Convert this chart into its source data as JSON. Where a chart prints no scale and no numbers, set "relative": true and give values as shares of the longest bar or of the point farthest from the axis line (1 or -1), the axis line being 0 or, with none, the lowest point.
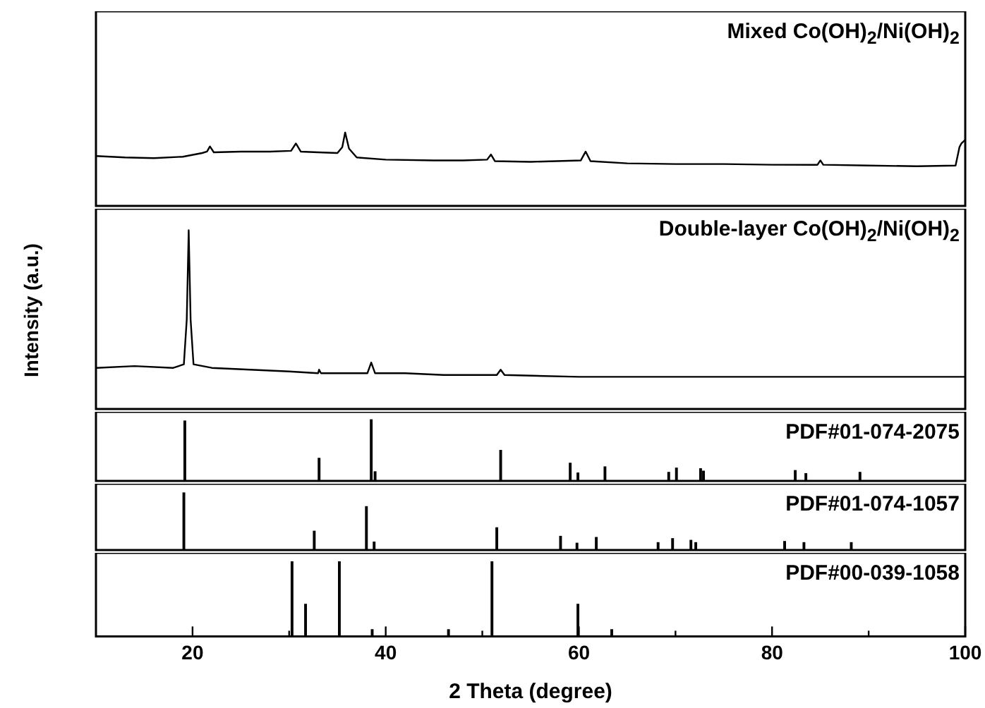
{
  "chart_data": [
    {
      "type": "line",
      "relative": true,
      "tick_labels": false,
      "xlim": [
        10,
        100
      ],
      "color": "#000000",
      "annotations": [
        "Mixed Co(OH)$_{2}$/Ni(OH)$_{2}$"
      ],
      "x": [
        10,
        13,
        16,
        19,
        21,
        21.5,
        21.8,
        22.2,
        25,
        28,
        30.2,
        30.7,
        31.2,
        33,
        35,
        35.5,
        35.8,
        36.2,
        37,
        40,
        45,
        48,
        50.5,
        50.9,
        51.3,
        55,
        60.2,
        60.7,
        61.2,
        65,
        70,
        75,
        80,
        84.7,
        85,
        85.3,
        90,
        95,
        99,
        99.4,
        99.6,
        100
      ],
      "values": [
        0.68,
        0.66,
        0.65,
        0.67,
        0.72,
        0.74,
        0.81,
        0.73,
        0.74,
        0.74,
        0.75,
        0.85,
        0.74,
        0.73,
        0.72,
        0.8,
        1.0,
        0.78,
        0.66,
        0.63,
        0.62,
        0.62,
        0.63,
        0.7,
        0.61,
        0.6,
        0.62,
        0.74,
        0.61,
        0.58,
        0.57,
        0.57,
        0.56,
        0.56,
        0.62,
        0.56,
        0.55,
        0.54,
        0.55,
        0.8,
        0.85,
        0.9
      ]
    },
    {
      "type": "line",
      "relative": true,
      "tick_labels": false,
      "xlim": [
        10,
        100
      ],
      "color": "#000000",
      "ylabel": "Intensity (a.u.)",
      "annotations": [
        "Double-layer Co(OH)$_{2}$/Ni(OH)$_{2}$"
      ],
      "x": [
        10,
        14,
        18,
        19.1,
        19.4,
        19.6,
        19.8,
        20.1,
        22,
        26,
        30,
        33,
        33.1,
        33.3,
        36,
        38.1,
        38.5,
        38.9,
        42,
        46,
        51.5,
        51.9,
        52.3,
        60,
        70,
        80,
        90,
        100
      ],
      "values": [
        0.23,
        0.24,
        0.23,
        0.25,
        0.5,
        1.0,
        0.5,
        0.25,
        0.23,
        0.22,
        0.21,
        0.2,
        0.22,
        0.2,
        0.2,
        0.2,
        0.26,
        0.2,
        0.2,
        0.19,
        0.19,
        0.22,
        0.19,
        0.18,
        0.18,
        0.18,
        0.18,
        0.18
      ]
    },
    {
      "type": "bar",
      "relative": true,
      "tick_labels": false,
      "xlim": [
        10,
        100
      ],
      "color": "#000000",
      "annotations": [
        "PDF#01-074-2075"
      ],
      "x": [
        19.2,
        33.1,
        38.5,
        38.9,
        51.9,
        59.1,
        59.9,
        62.7,
        69.3,
        70.1,
        72.6,
        72.9,
        82.4,
        83.5,
        89.1
      ],
      "values": [
        0.98,
        0.37,
        1,
        0.15,
        0.5,
        0.29,
        0.13,
        0.23,
        0.14,
        0.21,
        0.2,
        0.16,
        0.17,
        0.12,
        0.14
      ]
    },
    {
      "type": "bar",
      "relative": true,
      "tick_labels": false,
      "xlim": [
        10,
        100
      ],
      "color": "#000000",
      "annotations": [
        "PDF#01-074-1057"
      ],
      "x": [
        19.1,
        32.6,
        38,
        38.8,
        51.5,
        58.1,
        59.8,
        61.8,
        68.2,
        69.7,
        71.6,
        72.1,
        81.3,
        83.3,
        88.2
      ],
      "values": [
        1,
        0.33,
        0.76,
        0.14,
        0.39,
        0.24,
        0.12,
        0.22,
        0.13,
        0.2,
        0.17,
        0.13,
        0.15,
        0.13,
        0.13
      ]
    },
    {
      "type": "bar",
      "relative": true,
      "tick_labels": "x",
      "xlim": [
        10,
        100
      ],
      "color": "#000000",
      "xlabel": "2 Theta (degree)",
      "annotations": [
        "PDF#00-039-1058"
      ],
      "xticks": [
        20,
        {
          "value": 30,
          "label": null
        },
        40,
        {
          "value": 50,
          "label": null
        },
        60,
        {
          "value": 70,
          "label": null
        },
        80,
        {
          "value": 90,
          "label": null
        },
        100
      ],
      "x": [
        30.3,
        31.7,
        35.2,
        38.6,
        46.5,
        51,
        59.9,
        63.4
      ],
      "values": [
        1,
        0.43,
        1,
        0.09,
        0.09,
        1,
        0.43,
        0.09
      ]
    }
  ]
}
